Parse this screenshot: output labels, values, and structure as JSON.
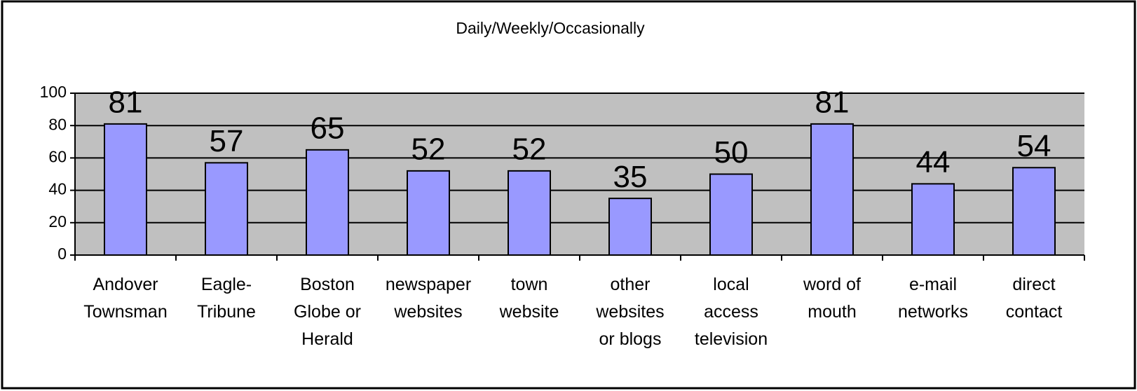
{
  "chart_data": {
    "type": "bar",
    "title": "Daily/Weekly/Occasionally",
    "categories": [
      "Andover\nTownsman",
      "Eagle-\nTribune",
      "Boston\nGlobe or\nHerald",
      "newspaper\nwebsites",
      "town\nwebsite",
      "other\nwebsites\nor blogs",
      "local\naccess\ntelevision",
      "word of\nmouth",
      "e-mail\nnetworks",
      "direct\ncontact"
    ],
    "values": [
      81,
      57,
      65,
      52,
      52,
      35,
      50,
      81,
      44,
      54
    ],
    "color": "#9999ff",
    "plot_background": "#c0c0c0",
    "ylim": [
      0,
      100
    ],
    "yticks": [
      0,
      20,
      40,
      60,
      80,
      100
    ],
    "grid": true
  }
}
